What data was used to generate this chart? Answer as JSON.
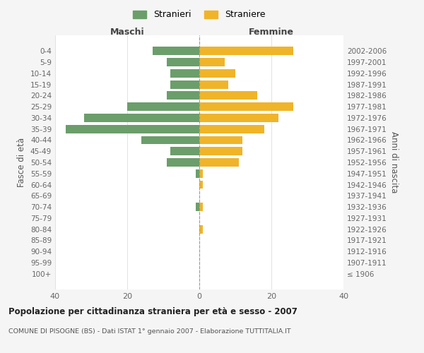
{
  "age_groups": [
    "100+",
    "95-99",
    "90-94",
    "85-89",
    "80-84",
    "75-79",
    "70-74",
    "65-69",
    "60-64",
    "55-59",
    "50-54",
    "45-49",
    "40-44",
    "35-39",
    "30-34",
    "25-29",
    "20-24",
    "15-19",
    "10-14",
    "5-9",
    "0-4"
  ],
  "birth_years": [
    "≤ 1906",
    "1907-1911",
    "1912-1916",
    "1917-1921",
    "1922-1926",
    "1927-1931",
    "1932-1936",
    "1937-1941",
    "1942-1946",
    "1947-1951",
    "1952-1956",
    "1957-1961",
    "1962-1966",
    "1967-1971",
    "1972-1976",
    "1977-1981",
    "1982-1986",
    "1987-1991",
    "1992-1996",
    "1997-2001",
    "2002-2006"
  ],
  "maschi": [
    0,
    0,
    0,
    0,
    0,
    0,
    1,
    0,
    0,
    1,
    9,
    8,
    16,
    37,
    32,
    20,
    9,
    8,
    8,
    9,
    13
  ],
  "femmine": [
    0,
    0,
    0,
    0,
    1,
    0,
    1,
    0,
    1,
    1,
    11,
    12,
    12,
    18,
    22,
    26,
    16,
    8,
    10,
    7,
    26
  ],
  "color_maschi": "#6b9e6b",
  "color_femmine": "#f0b429",
  "xlim": 40,
  "title": "Popolazione per cittadinanza straniera per età e sesso - 2007",
  "subtitle": "COMUNE DI PISOGNE (BS) - Dati ISTAT 1° gennaio 2007 - Elaborazione TUTTITALIA.IT",
  "ylabel_left": "Fasce di età",
  "ylabel_right": "Anni di nascita",
  "header_left": "Maschi",
  "header_right": "Femmine",
  "legend_maschi": "Stranieri",
  "legend_femmine": "Straniere",
  "bg_color": "#f5f5f5",
  "plot_bg_color": "#ffffff"
}
